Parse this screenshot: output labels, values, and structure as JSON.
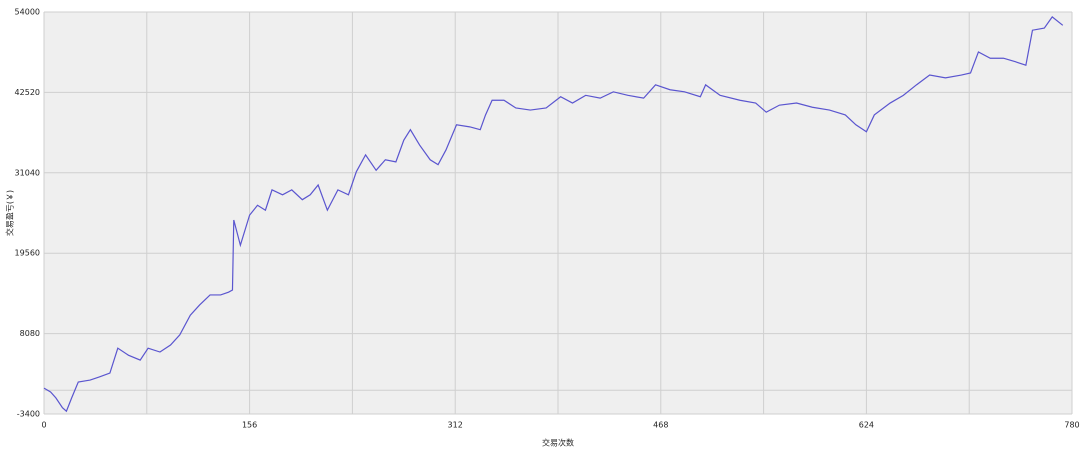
{
  "chart_data": {
    "type": "line",
    "x_label": "交易次数",
    "y_label": "交易盈亏(￥)",
    "xlim": [
      0,
      780
    ],
    "xticks": [
      0,
      156,
      312,
      468,
      624,
      780
    ],
    "xgrid_minor": [
      78,
      234,
      390,
      546,
      702
    ],
    "ylim": [
      -3400,
      54000
    ],
    "yticks": [
      -3400,
      8080,
      19560,
      31040,
      42520,
      54000
    ],
    "ygrid_minor": [
      0
    ],
    "grid": true,
    "series": [
      {
        "color": "#5a55cf",
        "x": [
          0,
          5,
          9,
          14,
          17,
          21,
          26,
          35,
          42,
          50,
          56,
          64,
          73,
          79,
          88,
          96,
          103,
          111,
          118,
          126,
          134,
          140,
          143,
          144,
          149,
          156,
          162,
          168,
          173,
          181,
          188,
          196,
          202,
          208,
          215,
          223,
          231,
          237,
          244,
          252,
          259,
          267,
          273,
          278,
          285,
          293,
          299,
          305,
          313,
          323,
          331,
          335,
          340,
          349,
          358,
          369,
          381,
          392,
          401,
          411,
          422,
          432,
          443,
          455,
          464,
          475,
          486,
          498,
          502,
          513,
          528,
          540,
          548,
          558,
          571,
          583,
          596,
          608,
          616,
          624,
          630,
          642,
          652,
          662,
          672,
          684,
          696,
          703,
          709,
          718,
          728,
          737,
          745,
          750,
          759,
          765,
          773
        ],
        "values": [
          300,
          -260,
          -1100,
          -2500,
          -3000,
          -1100,
          1170,
          1450,
          1900,
          2450,
          6000,
          5000,
          4300,
          6000,
          5450,
          6450,
          7900,
          10700,
          12150,
          13600,
          13600,
          14000,
          14300,
          24300,
          20700,
          25000,
          26400,
          25700,
          28600,
          27900,
          28600,
          27200,
          27900,
          29300,
          25700,
          28600,
          27900,
          31200,
          33600,
          31400,
          32900,
          32600,
          35700,
          37200,
          35000,
          32900,
          32200,
          34300,
          37900,
          37600,
          37200,
          39300,
          41400,
          41400,
          40300,
          40000,
          40300,
          41900,
          41000,
          42100,
          41700,
          42600,
          42100,
          41700,
          43600,
          42900,
          42600,
          41900,
          43600,
          42100,
          41400,
          41000,
          39700,
          40700,
          41000,
          40400,
          40000,
          39300,
          37900,
          36900,
          39300,
          41000,
          42100,
          43600,
          45000,
          44600,
          45000,
          45300,
          48300,
          47400,
          47400,
          46900,
          46400,
          51400,
          51700,
          53300,
          52100
        ]
      }
    ]
  }
}
